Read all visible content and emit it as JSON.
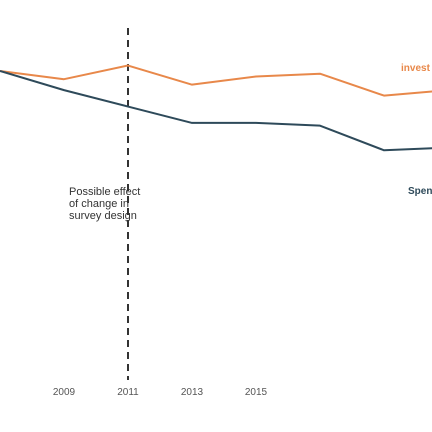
{
  "chart_data": {
    "type": "line",
    "x": [
      2007,
      2009,
      2011,
      2013,
      2015,
      2017,
      2019,
      2021
    ],
    "x_ticks": [
      "2009",
      "2011",
      "2013",
      "2015"
    ],
    "x_tick_values": [
      2009,
      2011,
      2013,
      2015
    ],
    "series": [
      {
        "name": "invest",
        "color": "#e8884a",
        "values": [
          60,
          57,
          62,
          55,
          58,
          59,
          51,
          53
        ]
      },
      {
        "name": "Spen",
        "color": "#2e4a5a",
        "values": [
          60,
          53,
          47,
          41,
          41,
          40,
          31,
          32
        ]
      }
    ],
    "annotation": {
      "x": 2011,
      "style": "dashed",
      "color": "#333333",
      "lines": [
        "Possible effect",
        "of change in",
        "survey design"
      ]
    },
    "xlim": [
      2007,
      2020.5
    ],
    "ylim": [
      0,
      75
    ],
    "grid": false,
    "legend": "none"
  }
}
